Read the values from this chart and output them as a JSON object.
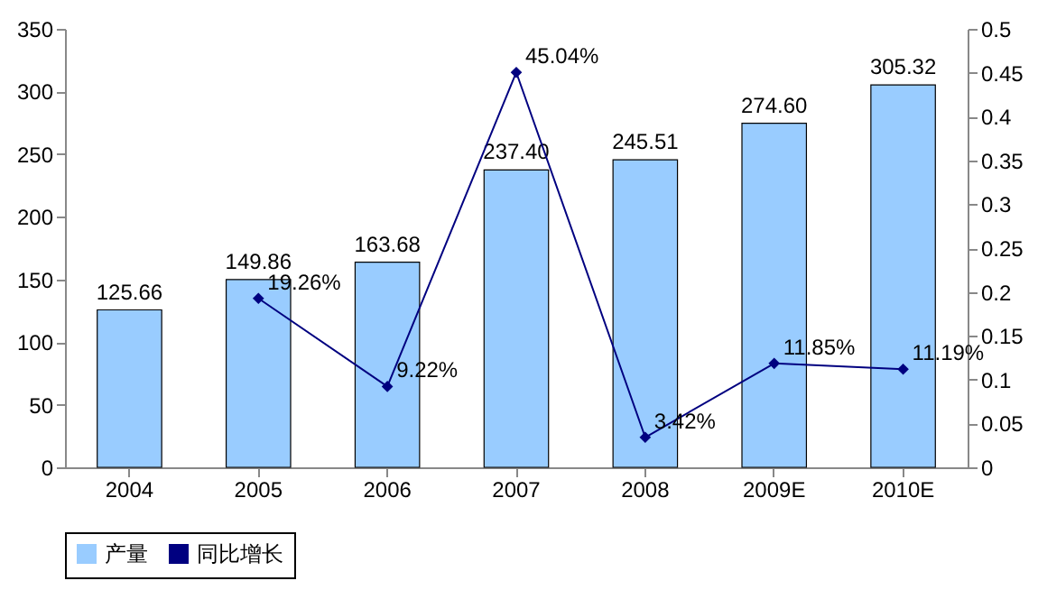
{
  "chart_data": {
    "type": "bar",
    "categories": [
      "2004",
      "2005",
      "2006",
      "2007",
      "2008",
      "2009E",
      "2010E"
    ],
    "series": [
      {
        "name": "产量",
        "color": "#99ccff",
        "values": [
          125.66,
          149.86,
          163.68,
          237.4,
          245.51,
          274.6,
          305.32
        ],
        "value_labels": [
          "125.66",
          "149.86",
          "163.68",
          "237.40",
          "245.51",
          "274.60",
          "305.32"
        ]
      },
      {
        "name": "同比增长",
        "type": "line",
        "axis": "y2",
        "color": "#000080",
        "marker": "diamond",
        "values": [
          null,
          0.1926,
          0.0922,
          0.4504,
          0.0342,
          0.1185,
          0.1119
        ],
        "value_labels": [
          null,
          "19.26%",
          "9.22%",
          "45.04%",
          "3.42%",
          "11.85%",
          "11.19%"
        ]
      }
    ],
    "ylim": [
      0,
      350
    ],
    "yticks": [
      0,
      50,
      100,
      150,
      200,
      250,
      300,
      350
    ],
    "y2lim": [
      0,
      0.5
    ],
    "y2ticks": [
      0,
      0.05,
      0.1,
      0.15,
      0.2,
      0.25,
      0.3,
      0.35,
      0.4,
      0.45,
      0.5
    ],
    "grid": false,
    "legend": "bottom"
  }
}
